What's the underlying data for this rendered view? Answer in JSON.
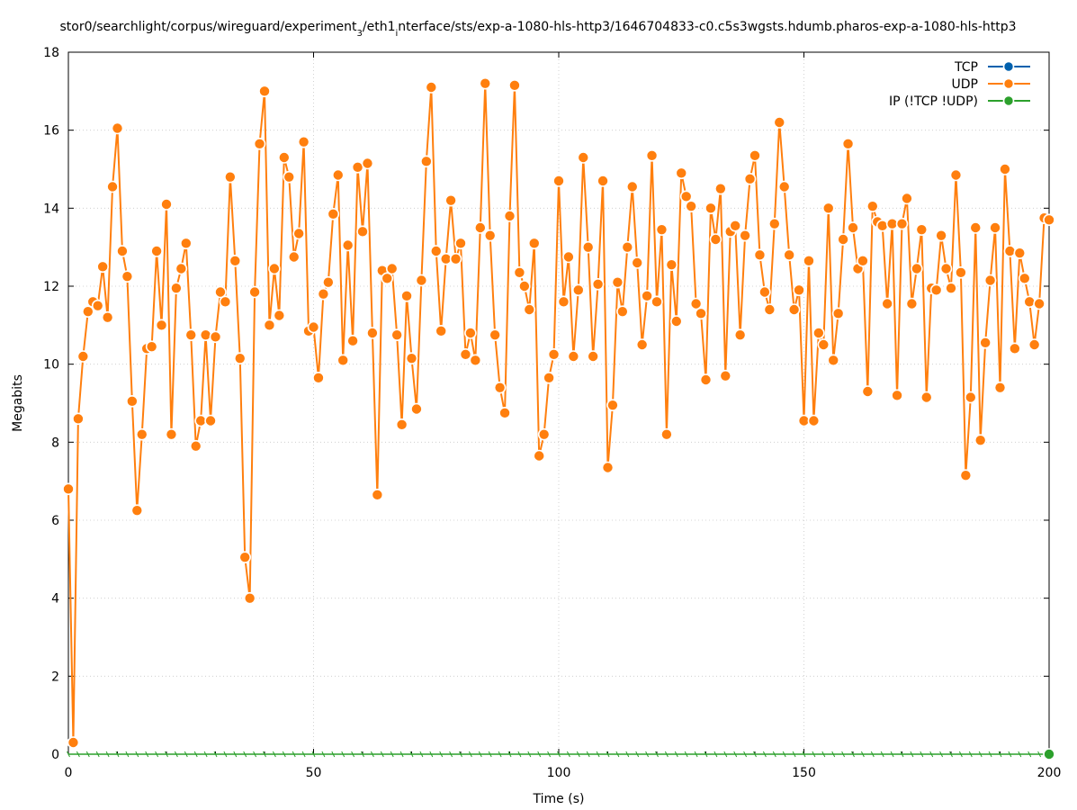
{
  "chart_data": {
    "type": "line",
    "title": "stor0/searchlight/corpus/wireguard/experiment_3/eth1_interface/sts/exp-a-1080-hls-http3/1646704833-c0.c5s3wgsts.hdumb.pharos-exp-a-1080-hls-http3",
    "title_parts": {
      "a": "stor0/searchlight/corpus/wireguard/experiment",
      "sub1": "3",
      "b": "/eth1",
      "sub2": "i",
      "c": "nterface/sts/exp-a-1080-hls-http3/1646704833-c0.c5s3wgsts.hdumb.pharos-exp-a-1080-hls-http3"
    },
    "xlabel": "Time (s)",
    "ylabel": "Megabits",
    "xlim": [
      0,
      200
    ],
    "ylim": [
      0,
      18
    ],
    "xticks": [
      0,
      50,
      100,
      150,
      200
    ],
    "yticks": [
      0,
      2,
      4,
      6,
      8,
      10,
      12,
      14,
      16,
      18
    ],
    "grid": true,
    "legend_position": "top-right",
    "series": [
      {
        "name": "TCP",
        "color": "#0060ad",
        "x": [],
        "y": []
      },
      {
        "name": "UDP",
        "color": "#ff7f0e",
        "x": [
          0,
          1,
          2,
          3,
          4,
          5,
          6,
          7,
          8,
          9,
          10,
          11,
          12,
          13,
          14,
          15,
          16,
          17,
          18,
          19,
          20,
          21,
          22,
          23,
          24,
          25,
          26,
          27,
          28,
          29,
          30,
          31,
          32,
          33,
          34,
          35,
          36,
          37,
          38,
          39,
          40,
          41,
          42,
          43,
          44,
          45,
          46,
          47,
          48,
          49,
          50,
          51,
          52,
          53,
          54,
          55,
          56,
          57,
          58,
          59,
          60,
          61,
          62,
          63,
          64,
          65,
          66,
          67,
          68,
          69,
          70,
          71,
          72,
          73,
          74,
          75,
          76,
          77,
          78,
          79,
          80,
          81,
          82,
          83,
          84,
          85,
          86,
          87,
          88,
          89,
          90,
          91,
          92,
          93,
          94,
          95,
          96,
          97,
          98,
          99,
          100,
          101,
          102,
          103,
          104,
          105,
          106,
          107,
          108,
          109,
          110,
          111,
          112,
          113,
          114,
          115,
          116,
          117,
          118,
          119,
          120,
          121,
          122,
          123,
          124,
          125,
          126,
          127,
          128,
          129,
          130,
          131,
          132,
          133,
          134,
          135,
          136,
          137,
          138,
          139,
          140,
          141,
          142,
          143,
          144,
          145,
          146,
          147,
          148,
          149,
          150,
          151,
          152,
          153,
          154,
          155,
          156,
          157,
          158,
          159,
          160,
          161,
          162,
          163,
          164,
          165,
          166,
          167,
          168,
          169,
          170,
          171,
          172,
          173,
          174,
          175,
          176,
          177,
          178,
          179,
          180,
          181,
          182,
          183,
          184,
          185,
          186,
          187,
          188,
          189,
          190,
          191,
          192,
          193,
          194,
          195,
          196,
          197,
          198,
          199,
          200
        ],
        "y": [
          6.8,
          0.3,
          8.6,
          10.2,
          11.35,
          11.6,
          11.5,
          12.5,
          11.2,
          14.55,
          16.05,
          12.9,
          12.25,
          9.05,
          6.25,
          8.2,
          10.4,
          10.45,
          12.9,
          11.0,
          14.1,
          8.2,
          11.95,
          12.45,
          13.1,
          10.75,
          7.9,
          8.55,
          10.75,
          8.55,
          10.7,
          11.85,
          11.6,
          14.8,
          12.65,
          10.15,
          5.05,
          4.0,
          11.85,
          15.65,
          17.0,
          11.0,
          12.45,
          11.25,
          15.3,
          14.8,
          12.75,
          13.35,
          15.7,
          10.85,
          10.95,
          9.65,
          11.8,
          12.1,
          13.85,
          14.85,
          10.1,
          13.05,
          10.6,
          15.05,
          13.4,
          15.15,
          10.8,
          6.65,
          12.4,
          12.2,
          12.45,
          10.75,
          8.45,
          11.75,
          10.15,
          8.85,
          12.15,
          15.2,
          17.1,
          12.9,
          10.85,
          12.7,
          14.2,
          12.7,
          13.1,
          10.25,
          10.8,
          10.1,
          13.5,
          17.2,
          13.3,
          10.75,
          9.4,
          8.75,
          13.8,
          17.15,
          12.35,
          12.0,
          11.4,
          13.1,
          7.65,
          8.2,
          9.65,
          10.25,
          14.7,
          11.6,
          12.75,
          10.2,
          11.9,
          15.3,
          13.0,
          10.2,
          12.05,
          14.7,
          7.35,
          8.95,
          12.1,
          11.35,
          13.0,
          14.55,
          12.6,
          10.5,
          11.75,
          15.35,
          11.6,
          13.45,
          8.2,
          12.55,
          11.1,
          14.9,
          14.3,
          14.05,
          11.55,
          11.3,
          9.6,
          14.0,
          13.2,
          14.5,
          9.7,
          13.4,
          13.55,
          10.75,
          13.3,
          14.75,
          15.35,
          12.8,
          11.85,
          11.4,
          13.6,
          16.2,
          14.55,
          12.8,
          11.4,
          11.9,
          8.55,
          12.65,
          8.55,
          10.8,
          10.5,
          14.0,
          10.1,
          11.3,
          13.2,
          15.65,
          13.5,
          12.45,
          12.65,
          9.3,
          14.05,
          13.65,
          13.55,
          11.55,
          13.6,
          9.2,
          13.6,
          14.25,
          11.55,
          12.45,
          13.45,
          9.15,
          11.95,
          11.9,
          13.3,
          12.45,
          11.95,
          14.85,
          12.35,
          7.15,
          9.15,
          13.5,
          8.05,
          10.55,
          12.15,
          13.5,
          9.4,
          15.0,
          12.9,
          10.4,
          12.85,
          12.2,
          11.6,
          10.5,
          11.55,
          13.75,
          13.7
        ]
      },
      {
        "name": "IP (!TCP  !UDP)",
        "color": "#2ca02c",
        "x": [
          200
        ],
        "y": [
          0.0
        ]
      }
    ]
  }
}
